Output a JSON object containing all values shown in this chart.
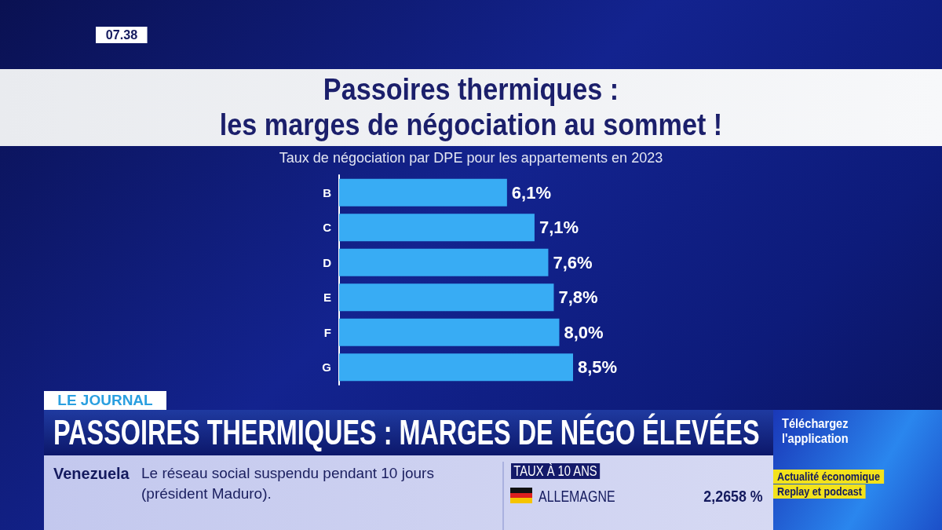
{
  "chart_data": {
    "type": "bar",
    "orientation": "horizontal",
    "title": "Passoires thermiques :\nles marges de négociation au sommet !",
    "subtitle": "Taux de négociation par DPE pour les appartements en 2023",
    "categories": [
      "B",
      "C",
      "D",
      "E",
      "F",
      "G"
    ],
    "values": [
      6.1,
      7.1,
      7.6,
      7.8,
      8.0,
      8.5
    ],
    "value_labels": [
      "6,1%",
      "7,1%",
      "7,6%",
      "7,8%",
      "8,0%",
      "8,5%"
    ],
    "color": "#38acf4",
    "tick_labels": "y",
    "annotations": [
      "07.38",
      "LE JOURNAL",
      "PASSOIRES THERMIQUES : MARGES DE NÉGO ÉLEVÉES",
      "Venezuela",
      "Le réseau social suspendu pendant 10 jours (président Maduro).",
      "TAUX À 10 ANS",
      "ALLEMAGNE",
      "2,2658 %",
      "Téléchargez l'application",
      "Actualité économique",
      "Replay et podcast"
    ]
  }
}
